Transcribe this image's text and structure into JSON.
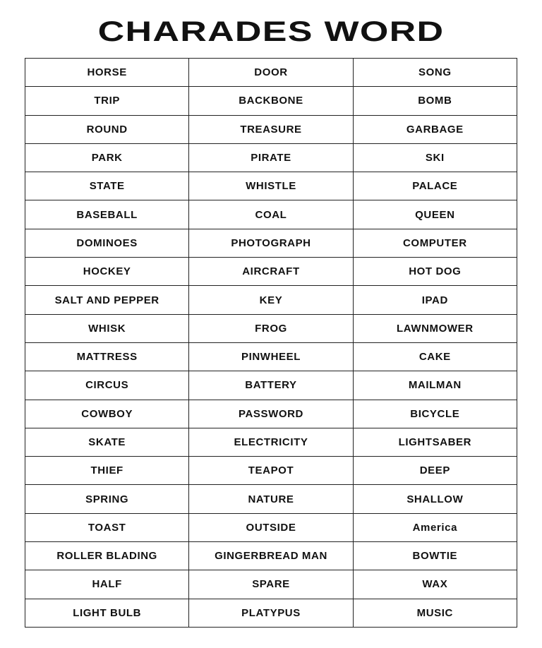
{
  "title": "CHARADES WORD",
  "rows": [
    [
      "HORSE",
      "DOOR",
      "SONG"
    ],
    [
      "TRIP",
      "BACKBONE",
      "BOMB"
    ],
    [
      "ROUND",
      "TREASURE",
      "GARBAGE"
    ],
    [
      "PARK",
      "PIRATE",
      "SKI"
    ],
    [
      "STATE",
      "WHISTLE",
      "PALACE"
    ],
    [
      "BASEBALL",
      "COAL",
      "QUEEN"
    ],
    [
      "DOMINOES",
      "PHOTOGRAPH",
      "COMPUTER"
    ],
    [
      "HOCKEY",
      "AIRCRAFT",
      "HOT DOG"
    ],
    [
      "SALT AND PEPPER",
      "KEY",
      "IPAD"
    ],
    [
      "WHISK",
      "FROG",
      "LAWNMOWER"
    ],
    [
      "MATTRESS",
      "PINWHEEL",
      "CAKE"
    ],
    [
      "CIRCUS",
      "BATTERY",
      "MAILMAN"
    ],
    [
      "COWBOY",
      "PASSWORD",
      "BICYCLE"
    ],
    [
      "SKATE",
      "ELECTRICITY",
      "LIGHTSABER"
    ],
    [
      "THIEF",
      "TEAPOT",
      "DEEP"
    ],
    [
      "SPRING",
      "NATURE",
      "SHALLOW"
    ],
    [
      "TOAST",
      "OUTSIDE",
      "America"
    ],
    [
      "ROLLER BLADING",
      "GINGERBREAD MAN",
      "BOWTIE"
    ],
    [
      "HALF",
      "SPARE",
      "WAX"
    ],
    [
      "LIGHT BULB",
      "PLATYPUS",
      "MUSIC"
    ]
  ]
}
